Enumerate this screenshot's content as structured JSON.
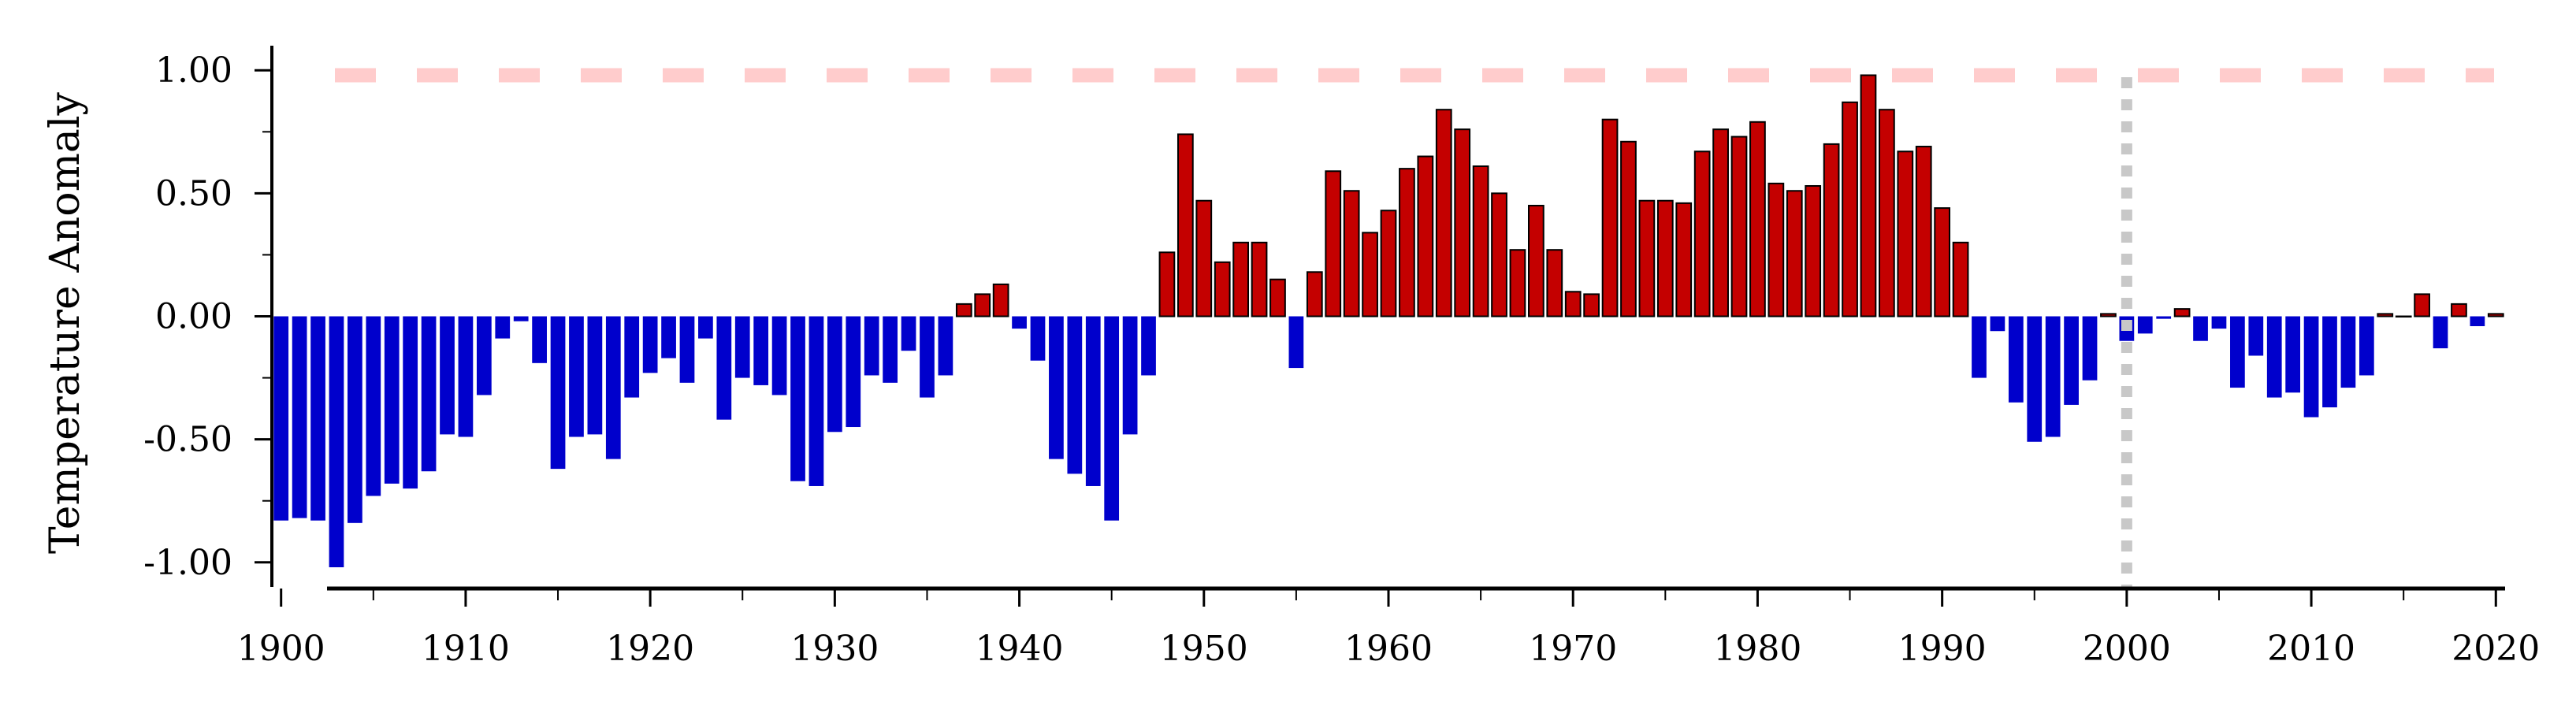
{
  "chart_data": {
    "type": "bar",
    "title": "",
    "xlabel": "",
    "ylabel": "Temperature Anomaly",
    "xlim": [
      1899.5,
      2020.5
    ],
    "ylim": [
      -1.1,
      1.1
    ],
    "x_ticks": [
      1900,
      1910,
      1920,
      1930,
      1940,
      1950,
      1960,
      1970,
      1980,
      1990,
      2000,
      2010,
      2020
    ],
    "x_tick_labels": [
      "1900",
      "1910",
      "1920",
      "1930",
      "1940",
      "1950",
      "1960",
      "1970",
      "1980",
      "1990",
      "2000",
      "2010",
      "2020"
    ],
    "y_ticks": [
      -1.0,
      -0.5,
      0.0,
      0.5,
      1.0
    ],
    "y_tick_labels": [
      "-1.00",
      "-0.50",
      "0.00",
      "0.50",
      "1.00"
    ],
    "grid": false,
    "legend": "none",
    "x_start_year": 1900,
    "values": [
      -0.83,
      -0.82,
      -0.83,
      -1.02,
      -0.84,
      -0.73,
      -0.68,
      -0.7,
      -0.63,
      -0.48,
      -0.49,
      -0.32,
      -0.09,
      -0.02,
      -0.19,
      -0.62,
      -0.49,
      -0.48,
      -0.58,
      -0.33,
      -0.23,
      -0.17,
      -0.27,
      -0.09,
      -0.42,
      -0.25,
      -0.28,
      -0.32,
      -0.67,
      -0.69,
      -0.47,
      -0.45,
      -0.24,
      -0.27,
      -0.14,
      -0.33,
      -0.24,
      0.05,
      0.09,
      0.13,
      -0.05,
      -0.18,
      -0.58,
      -0.64,
      -0.69,
      -0.83,
      -0.48,
      -0.24,
      0.26,
      0.74,
      0.47,
      0.22,
      0.3,
      0.3,
      0.15,
      -0.21,
      0.18,
      0.59,
      0.51,
      0.34,
      0.43,
      0.6,
      0.65,
      0.84,
      0.76,
      0.61,
      0.5,
      0.27,
      0.45,
      0.27,
      0.1,
      0.09,
      0.8,
      0.71,
      0.47,
      0.47,
      0.46,
      0.67,
      0.76,
      0.73,
      0.79,
      0.54,
      0.51,
      0.53,
      0.7,
      0.87,
      0.98,
      0.84,
      0.67,
      0.69,
      0.44,
      0.3,
      -0.25,
      -0.06,
      -0.35,
      -0.51,
      -0.49,
      -0.36,
      -0.26,
      0.01,
      -0.1,
      -0.07,
      -0.01,
      0.03,
      -0.1,
      -0.05,
      -0.29,
      -0.16,
      -0.33,
      -0.31,
      -0.41,
      -0.37,
      -0.29,
      -0.24,
      0.01,
      0.0,
      0.09,
      -0.13,
      0.05,
      -0.04,
      0.01
    ],
    "reference_line": {
      "value": 0.98,
      "style": "dashed",
      "color": "#ffcccc"
    },
    "vertical_marker": {
      "x": 2000,
      "style": "dotted",
      "color": "#c8c8c8"
    },
    "colors": {
      "positive": "#c40000",
      "negative": "#0000cc",
      "positive_edge": "#000000"
    }
  }
}
